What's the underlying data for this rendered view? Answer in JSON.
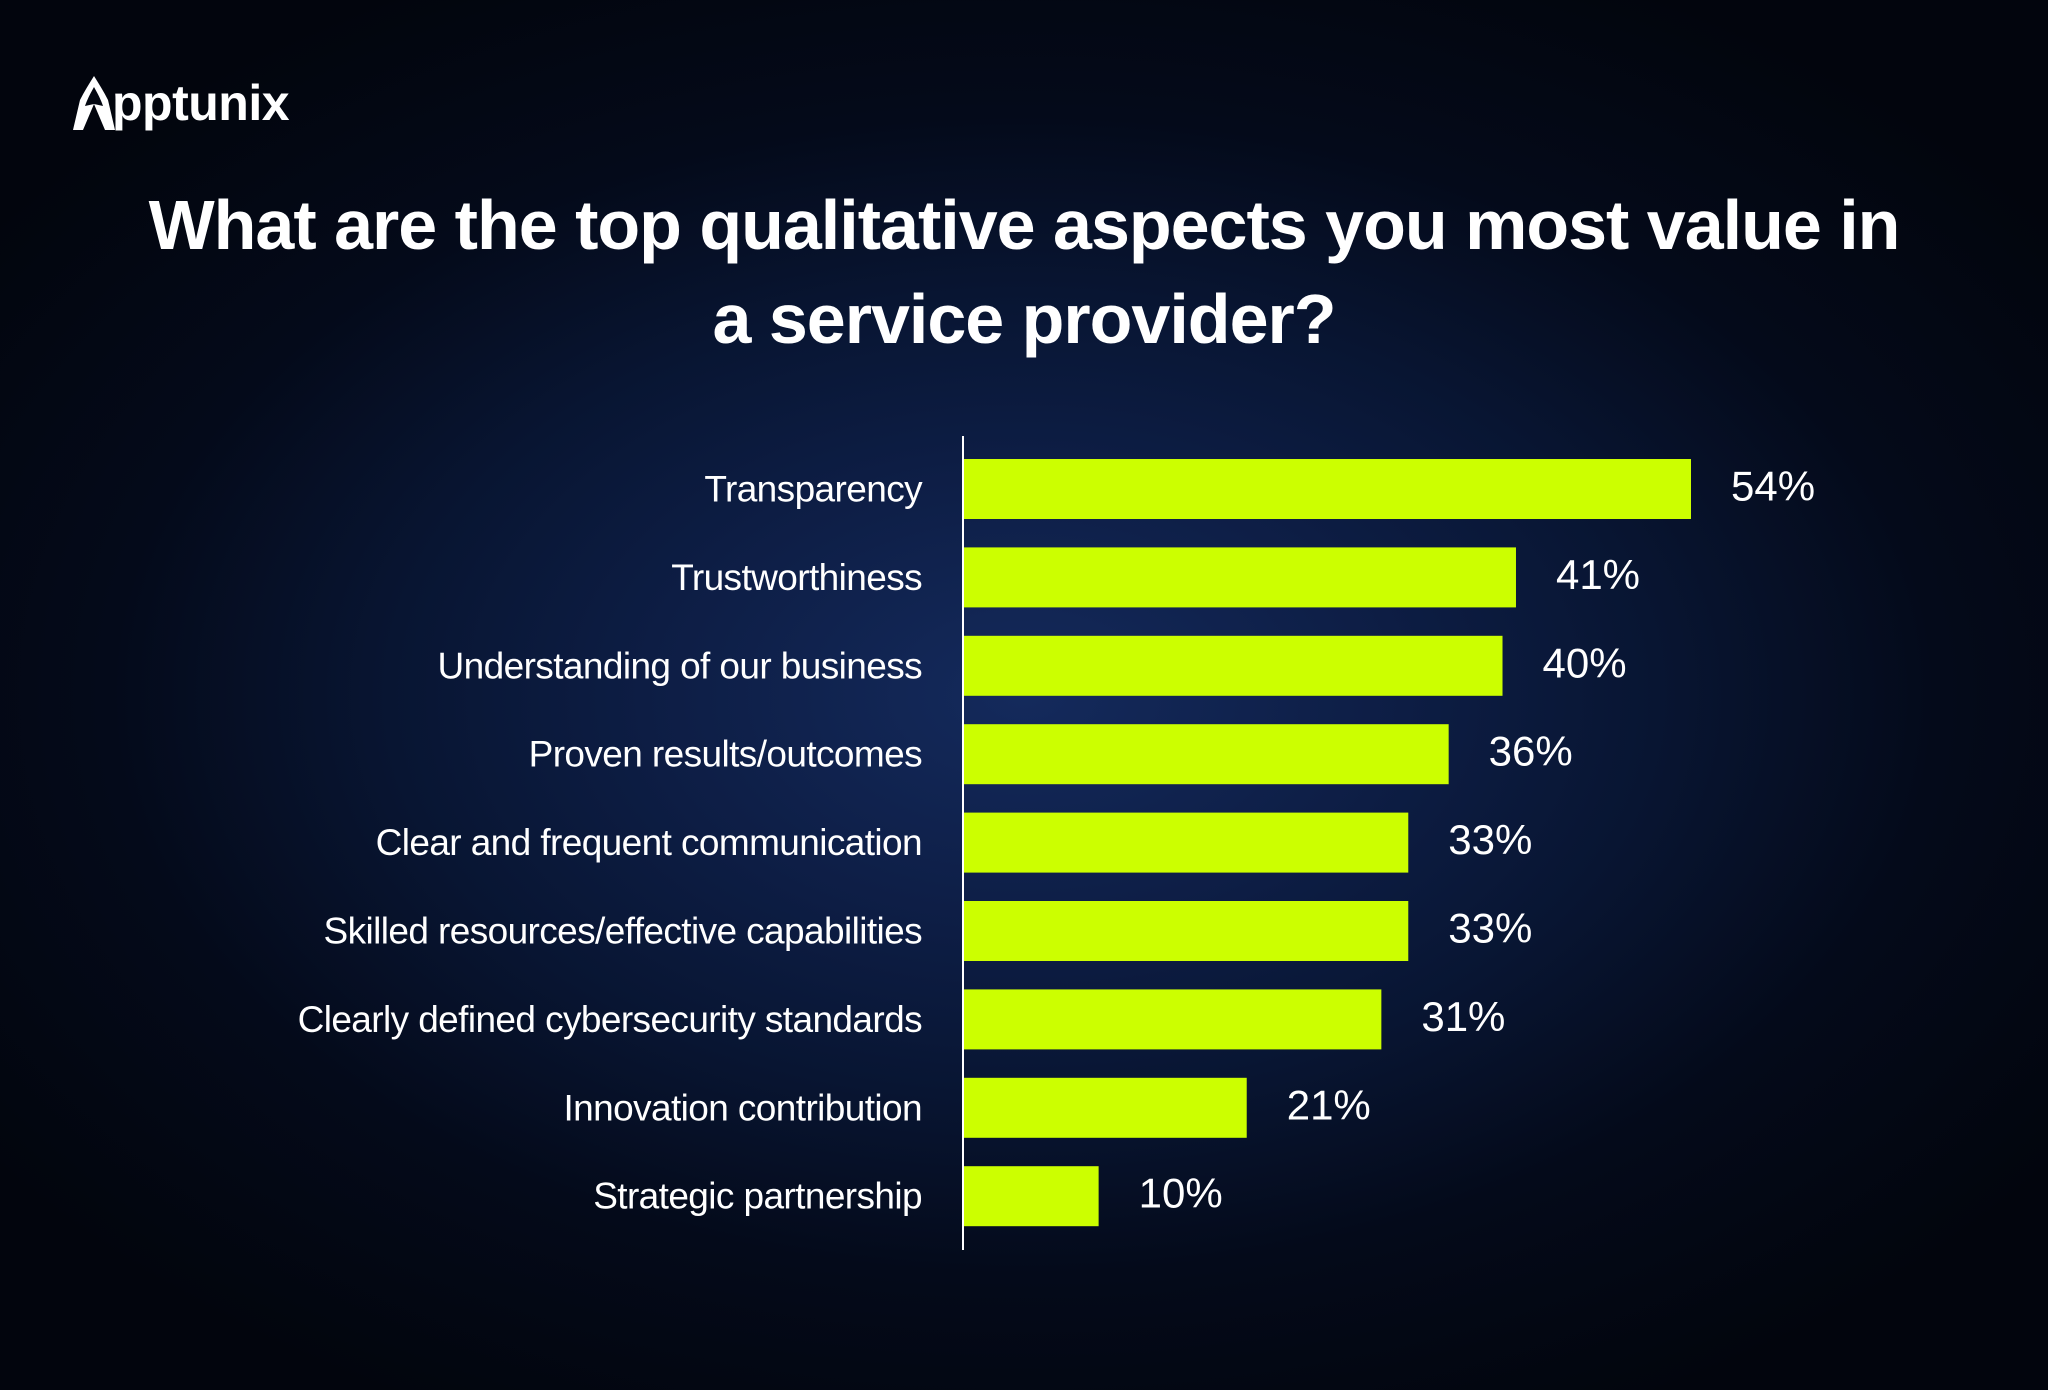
{
  "brand": {
    "logo_text": "pptunix"
  },
  "colors": {
    "background": "#0d1d44",
    "bar": "#ccff00",
    "text": "#ffffff",
    "axis": "#ffffff"
  },
  "chart_data": {
    "type": "bar",
    "orientation": "horizontal",
    "title": "What are the top qualitative aspects you most value in a service provider?",
    "categories": [
      "Transparency",
      "Trustworthiness",
      "Understanding of our business",
      "Proven results/outcomes",
      "Clear and frequent communication",
      "Skilled resources/effective capabilities",
      "Clearly defined cybersecurity standards",
      "Innovation contribution",
      "Strategic partnership"
    ],
    "values": [
      54,
      41,
      40,
      36,
      33,
      33,
      31,
      21,
      10
    ],
    "value_labels": [
      "54%",
      "41%",
      "40%",
      "36%",
      "33%",
      "33%",
      "31%",
      "21%",
      "10%"
    ],
    "unit": "%",
    "xlim": [
      0,
      54
    ],
    "grid": false,
    "legend": "none"
  }
}
